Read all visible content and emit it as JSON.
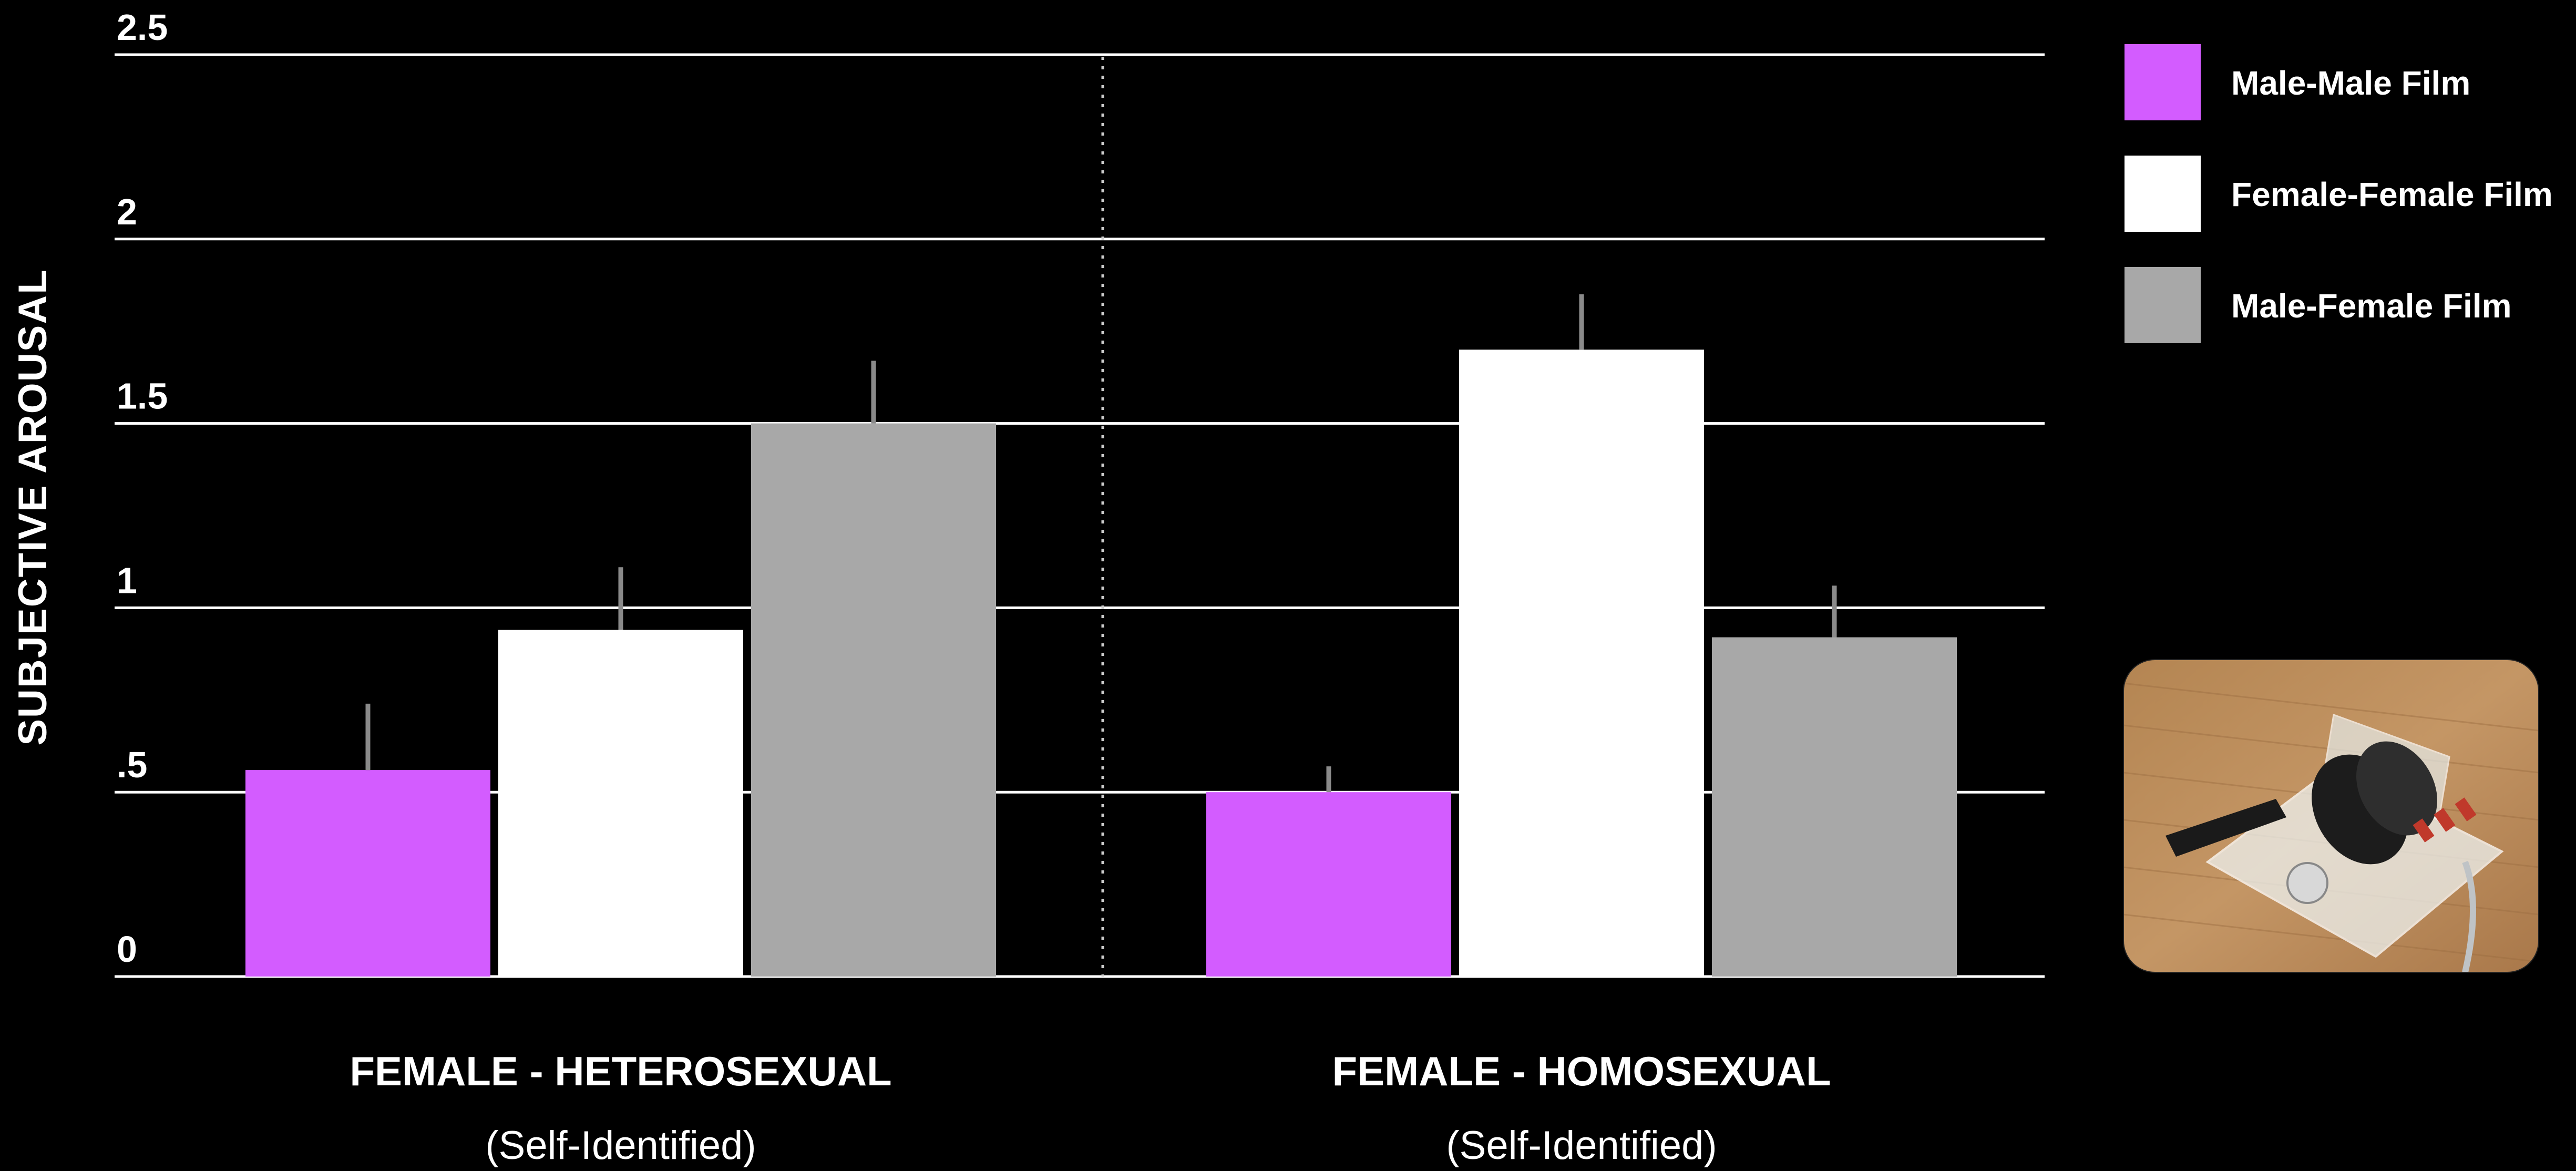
{
  "chart_data": {
    "type": "bar",
    "ylabel": "SUBJECTIVE AROUSAL",
    "ylim": [
      0,
      2.5
    ],
    "yticks": [
      {
        "value": 0,
        "label": "0"
      },
      {
        "value": 0.5,
        "label": ".5"
      },
      {
        "value": 1,
        "label": "1"
      },
      {
        "value": 1.5,
        "label": "1.5"
      },
      {
        "value": 2,
        "label": "2"
      },
      {
        "value": 2.5,
        "label": "2.5"
      }
    ],
    "grid": true,
    "legend_position": "top-right",
    "categories": [
      {
        "label": "FEMALE - HETEROSEXUAL",
        "sublabel": "(Self-Identified)"
      },
      {
        "label": "FEMALE - HOMOSEXUAL",
        "sublabel": "(Self-Identified)"
      }
    ],
    "series": [
      {
        "name": "Male-Male Film",
        "color": "#d35cff",
        "values": [
          0.56,
          0.5
        ],
        "error": [
          0.18,
          0.07
        ]
      },
      {
        "name": "Female-Female Film",
        "color": "#ffffff",
        "values": [
          0.94,
          1.7
        ],
        "error": [
          0.17,
          0.15
        ]
      },
      {
        "name": "Male-Female Film",
        "color": "#a8a8a8",
        "values": [
          1.5,
          0.92
        ],
        "error": [
          0.17,
          0.14
        ]
      }
    ],
    "error_bar_color": "#8a8a8a"
  },
  "photo": {
    "icon": "plethysmograph-device-photo"
  }
}
